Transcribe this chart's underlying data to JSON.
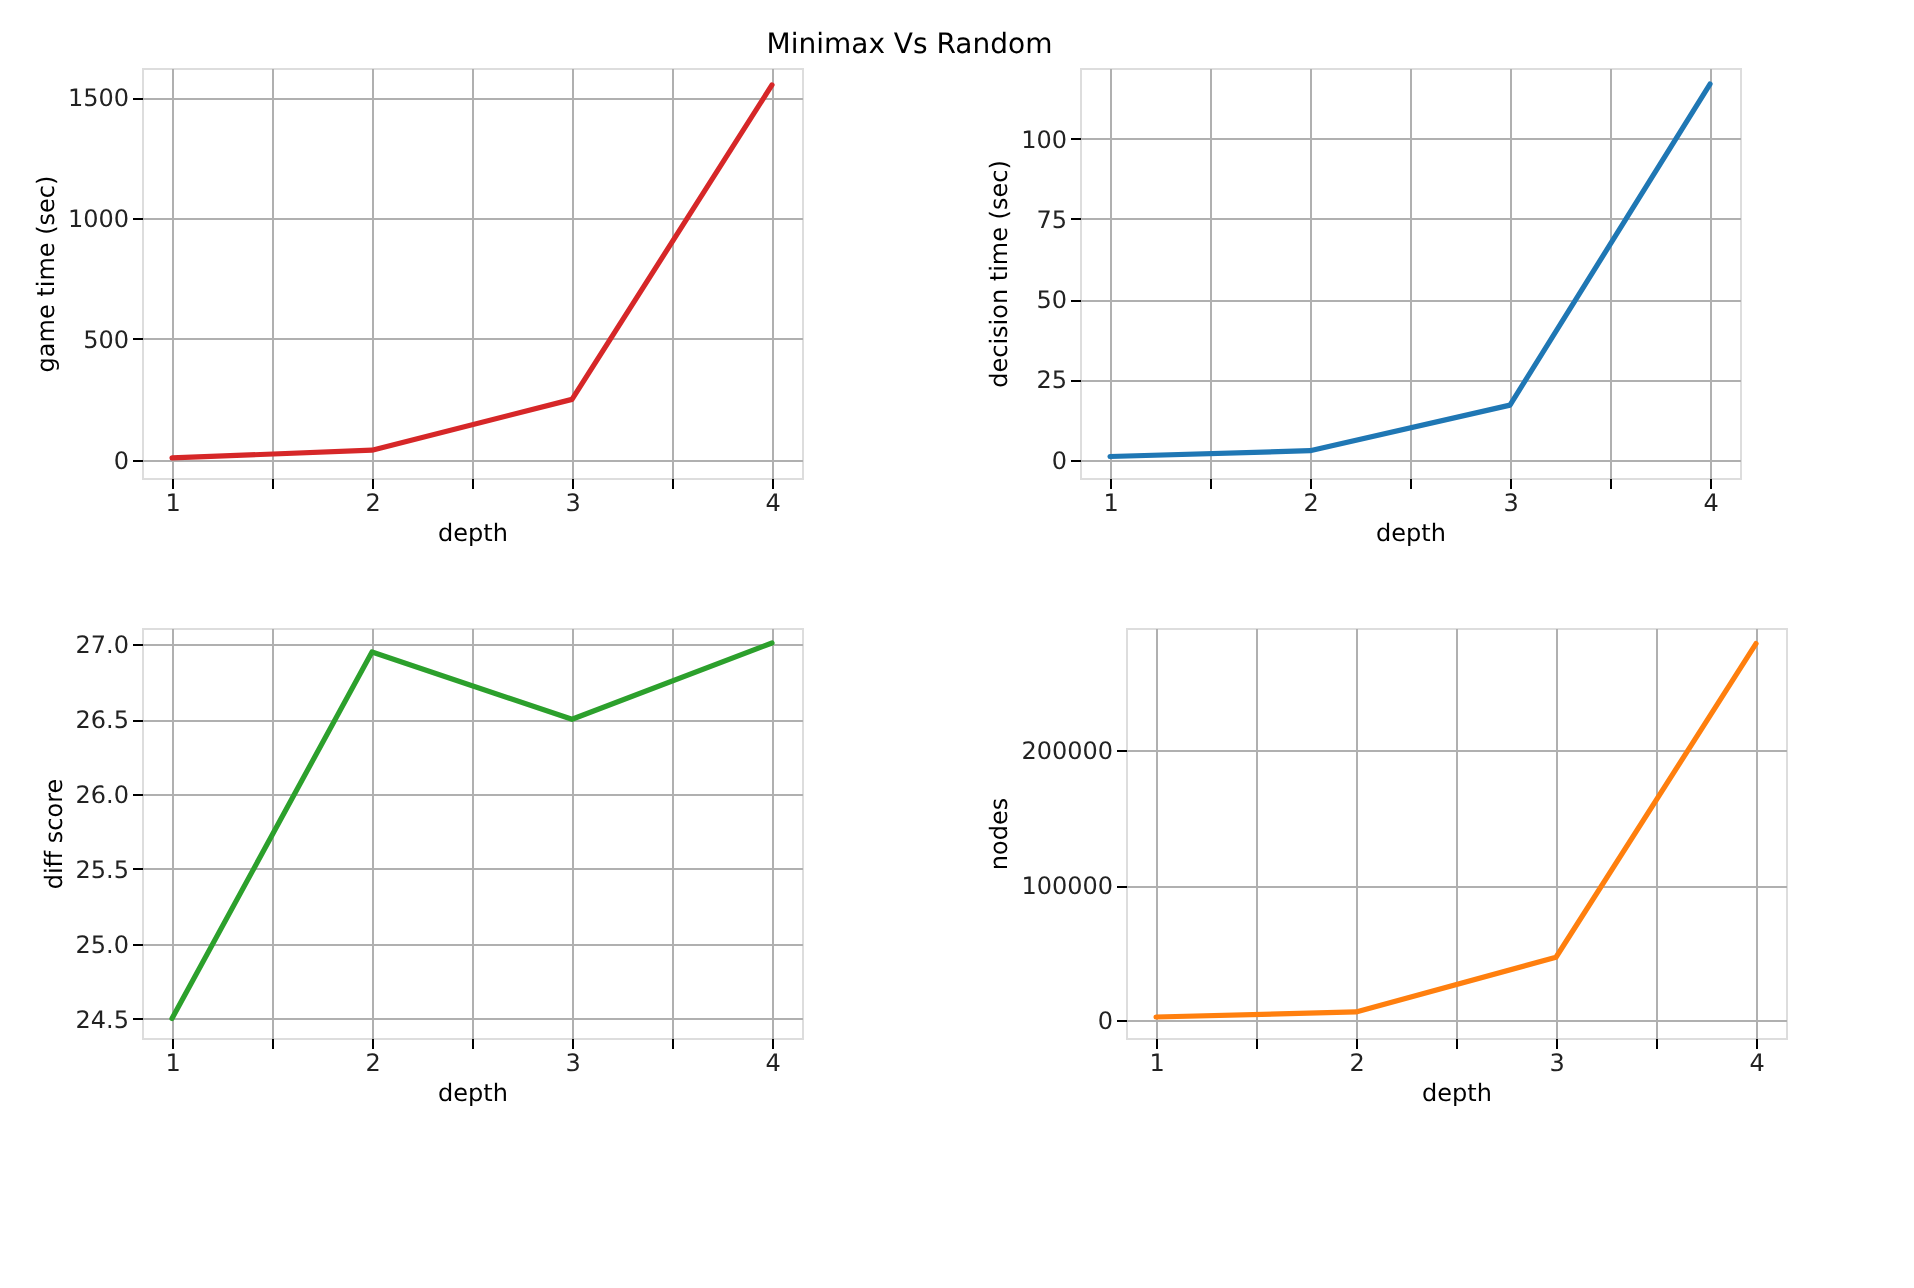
{
  "chart_data": [
    {
      "type": "line",
      "title": "Minimax Vs Random",
      "xlabel": "depth",
      "ylabel": "game time (sec)",
      "x": [
        1,
        2,
        3,
        4
      ],
      "series": [
        {
          "color": "#d62728",
          "values": [
            8,
            40,
            250,
            1550
          ]
        }
      ],
      "xlim": [
        0.85,
        4.15
      ],
      "xticks": [
        1,
        {
          "value": 1.5,
          "label": null
        },
        2,
        {
          "value": 2.5,
          "label": null
        },
        3,
        {
          "value": 3.5,
          "label": null
        },
        4
      ],
      "ylim": [
        -75,
        1620
      ],
      "yticks": [
        0,
        500,
        1000,
        1500
      ],
      "grid": true,
      "marker": "none",
      "line_style": "solid"
    },
    {
      "type": "line",
      "xlabel": "depth",
      "ylabel": "decision time (sec)",
      "x": [
        1,
        2,
        3,
        4
      ],
      "series": [
        {
          "color": "#1f77b4",
          "values": [
            1,
            2.8,
            17,
            117
          ]
        }
      ],
      "xlim": [
        0.85,
        4.15
      ],
      "xticks": [
        1,
        {
          "value": 1.5,
          "label": null
        },
        2,
        {
          "value": 2.5,
          "label": null
        },
        3,
        {
          "value": 3.5,
          "label": null
        },
        4
      ],
      "ylim": [
        -5.7,
        122
      ],
      "yticks": [
        0,
        25,
        50,
        75,
        100
      ],
      "grid": true,
      "marker": "none",
      "line_style": "solid"
    },
    {
      "type": "line",
      "xlabel": "depth",
      "ylabel": "diff score",
      "x": [
        1,
        2,
        3,
        4
      ],
      "series": [
        {
          "color": "#2ca02c",
          "values": [
            24.5,
            26.95,
            26.5,
            27.01
          ]
        }
      ],
      "xlim": [
        0.85,
        4.15
      ],
      "xticks": [
        1,
        {
          "value": 1.5,
          "label": null
        },
        2,
        {
          "value": 2.5,
          "label": null
        },
        3,
        {
          "value": 3.5,
          "label": null
        },
        4
      ],
      "ylim": [
        24.37,
        27.11
      ],
      "yticks": [
        {
          "value": 24.5,
          "label": "24.5"
        },
        {
          "value": 25,
          "label": "25.0"
        },
        {
          "value": 25.5,
          "label": "25.5"
        },
        {
          "value": 26,
          "label": "26.0"
        },
        {
          "value": 26.5,
          "label": "26.5"
        },
        {
          "value": 27,
          "label": "27.0"
        }
      ],
      "grid": true,
      "marker": "none",
      "line_style": "solid"
    },
    {
      "type": "line",
      "xlabel": "depth",
      "ylabel": "nodes",
      "x": [
        1,
        2,
        3,
        4
      ],
      "series": [
        {
          "color": "#ff7f0e",
          "values": [
            1900,
            5700,
            46300,
            279400
          ]
        }
      ],
      "xlim": [
        0.85,
        4.15
      ],
      "xticks": [
        1,
        {
          "value": 1.5,
          "label": null
        },
        2,
        {
          "value": 2.5,
          "label": null
        },
        3,
        {
          "value": 3.5,
          "label": null
        },
        4
      ],
      "ylim": [
        -13700,
        291000
      ],
      "yticks": [
        0,
        100000,
        200000
      ],
      "grid": true,
      "marker": "none",
      "line_style": "solid"
    }
  ]
}
